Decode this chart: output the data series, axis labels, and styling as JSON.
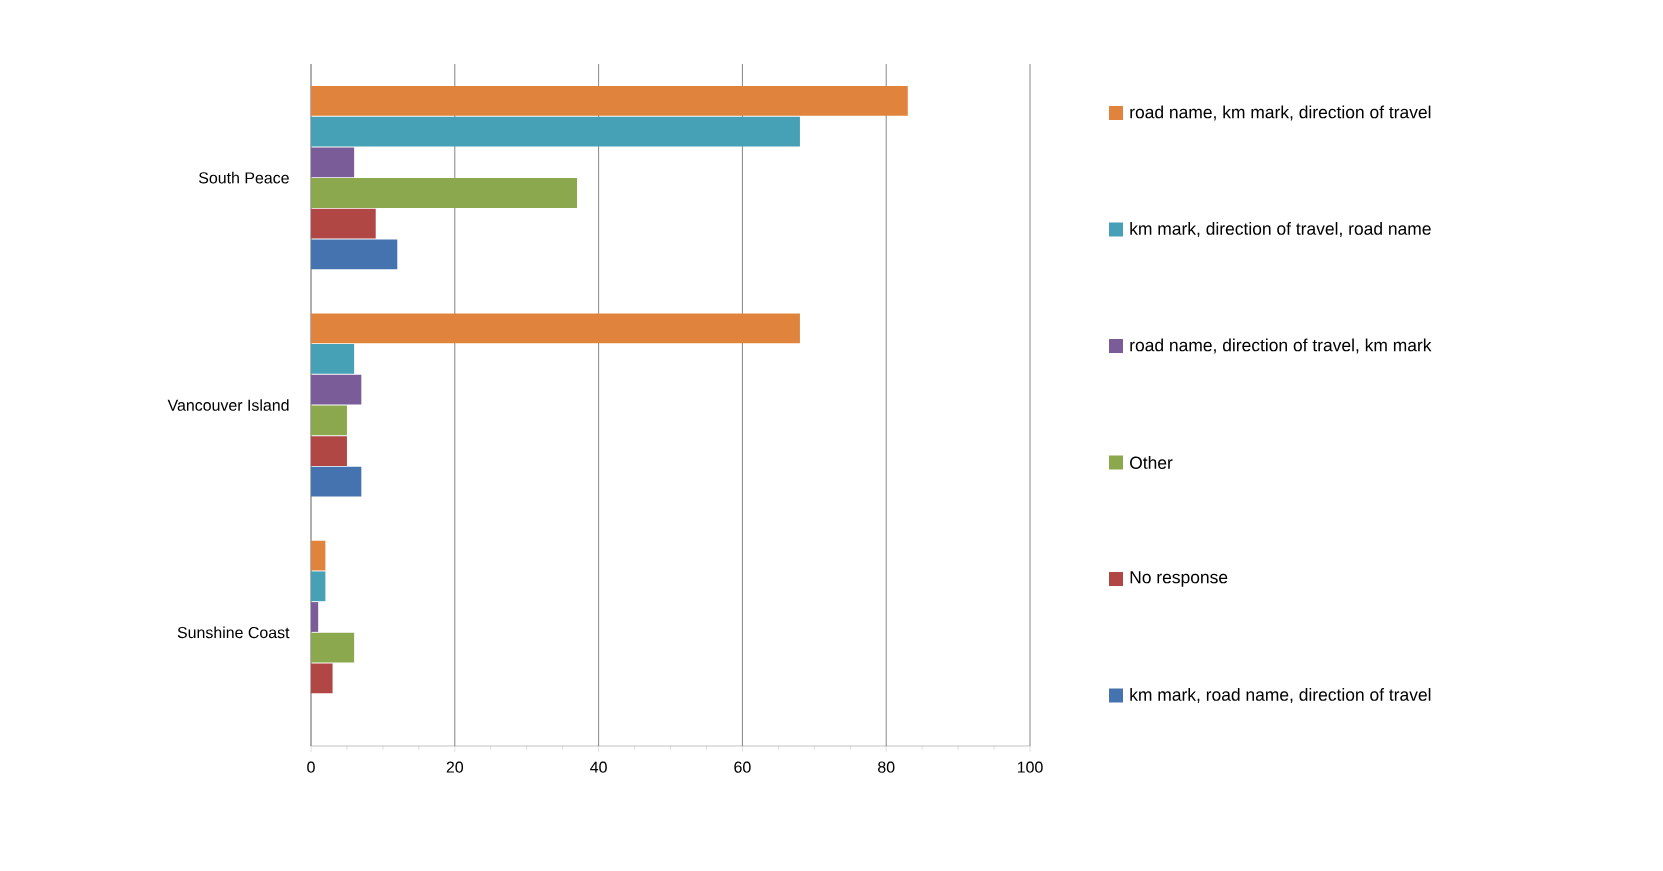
{
  "chart_data": {
    "type": "bar",
    "orientation": "horizontal",
    "categories": [
      "South Peace",
      "Vancouver Island",
      "Sunshine Coast"
    ],
    "series": [
      {
        "name": "road name, km mark, direction of travel",
        "color": "#e0843d",
        "values": [
          83,
          68,
          2
        ]
      },
      {
        "name": "km mark, direction of travel, road name",
        "color": "#46a0b6",
        "values": [
          68,
          6,
          2
        ]
      },
      {
        "name": "road name, direction of travel, km mark",
        "color": "#7a5c98",
        "values": [
          6,
          7,
          1
        ]
      },
      {
        "name": "Other",
        "color": "#8ba84e",
        "values": [
          37,
          5,
          6
        ]
      },
      {
        "name": "No response",
        "color": "#b04745",
        "values": [
          9,
          5,
          3
        ]
      },
      {
        "name": "km mark, road name, direction of travel",
        "color": "#4473b0",
        "values": [
          12,
          7,
          null
        ]
      }
    ],
    "xlim": [
      0,
      100
    ],
    "xticks": [
      0,
      20,
      40,
      60,
      80,
      100
    ],
    "grid": "x",
    "legend": "right"
  }
}
